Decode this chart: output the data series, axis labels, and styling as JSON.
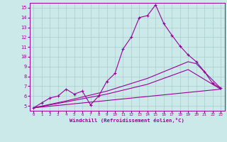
{
  "background_color": "#cce9ea",
  "line_color": "#990099",
  "grid_color": "#aacccc",
  "xlabel": "Windchill (Refroidissement éolien,°C)",
  "xlabel_color": "#990099",
  "tick_color": "#990099",
  "ylim": [
    4.5,
    15.5
  ],
  "xlim": [
    -0.5,
    23.5
  ],
  "yticks": [
    5,
    6,
    7,
    8,
    9,
    10,
    11,
    12,
    13,
    14,
    15
  ],
  "xticks": [
    0,
    1,
    2,
    3,
    4,
    5,
    6,
    7,
    8,
    9,
    10,
    11,
    12,
    13,
    14,
    15,
    16,
    17,
    18,
    19,
    20,
    21,
    22,
    23
  ],
  "series": [
    {
      "x": [
        0,
        1,
        2,
        3,
        4,
        5,
        6,
        7,
        8,
        9,
        10,
        11,
        12,
        13,
        14,
        15,
        16,
        17,
        18,
        19,
        20,
        21,
        22,
        23
      ],
      "y": [
        4.8,
        5.3,
        5.8,
        6.0,
        6.7,
        6.2,
        6.5,
        5.1,
        6.0,
        7.5,
        8.3,
        10.8,
        12.0,
        14.0,
        14.2,
        15.3,
        13.4,
        12.2,
        11.1,
        10.2,
        9.5,
        8.5,
        7.3,
        6.8
      ],
      "marker": true
    },
    {
      "x": [
        0,
        23
      ],
      "y": [
        4.8,
        6.7
      ],
      "marker": false
    },
    {
      "x": [
        0,
        4,
        9,
        14,
        19,
        20,
        23
      ],
      "y": [
        4.8,
        5.5,
        6.5,
        7.8,
        9.5,
        9.3,
        6.8
      ],
      "marker": false
    },
    {
      "x": [
        0,
        4,
        9,
        14,
        19,
        23
      ],
      "y": [
        4.8,
        5.4,
        6.2,
        7.2,
        8.7,
        6.7
      ],
      "marker": false
    }
  ]
}
